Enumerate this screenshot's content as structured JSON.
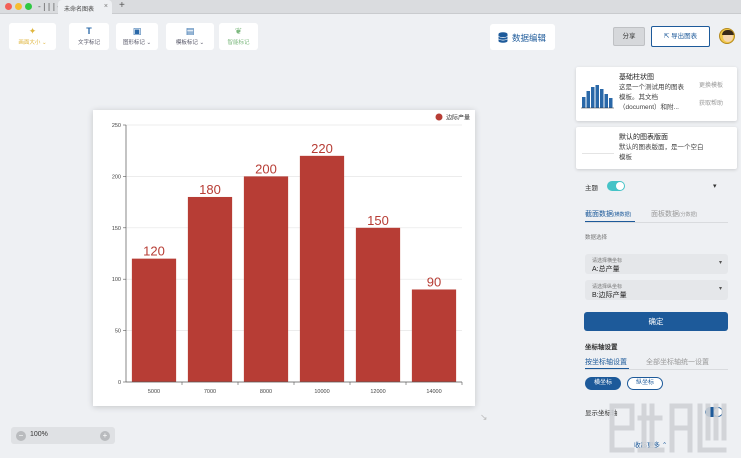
{
  "window": {
    "app_logo": "-|||-",
    "tab_title": "未命名图表",
    "tab_close": "×",
    "tab_add": "+"
  },
  "toolbar": {
    "buttons": [
      {
        "label": "画面大小",
        "icon": "wand-icon",
        "glyph": "✦",
        "chevron": "⌄",
        "color": "#e0b63e"
      },
      {
        "label": "文字标记",
        "icon": "text-icon",
        "glyph": "T"
      },
      {
        "label": "图形标记",
        "icon": "image-icon",
        "glyph": "▣",
        "chevron": "⌄"
      },
      {
        "label": "模板标记",
        "icon": "template-icon",
        "glyph": "▤",
        "chevron": "⌄"
      },
      {
        "label": "智能标记",
        "icon": "leaf-icon",
        "glyph": "❦",
        "color": "#7cb87e"
      }
    ],
    "data_edit": "数据编辑",
    "share": "分享",
    "export": "导出图表"
  },
  "zoom": {
    "value": "100%",
    "minus": "−",
    "plus": "+"
  },
  "chart_data": {
    "type": "bar",
    "categories": [
      "5000",
      "7000",
      "8000",
      "10000",
      "12000",
      "14000"
    ],
    "series": [
      {
        "name": "边际产量",
        "values": [
          120,
          180,
          200,
          220,
          150,
          90
        ]
      }
    ],
    "data_labels": [
      "120",
      "180",
      "200",
      "220",
      "150",
      "90"
    ],
    "ylim": [
      0,
      250
    ],
    "yticks": [
      "0",
      "50",
      "100",
      "150",
      "200",
      "250"
    ],
    "grid": true,
    "legend_position": "top-right",
    "bar_color": "#b73d35"
  },
  "templates": [
    {
      "name": "基础柱状图",
      "desc_lines": [
        "这是一个测试用的图表",
        "模板。其文档",
        "（document）和附..."
      ],
      "actions": [
        "更换模板",
        "获取帮助"
      ]
    },
    {
      "name": "默认的图表版面",
      "desc_lines": [
        "默认的图表版面，是一个空白",
        "模板"
      ]
    }
  ],
  "panel": {
    "theme_label": "主题",
    "theme_chevron": "▾",
    "data_tabs": [
      {
        "label": "截面数据",
        "sub": "(横数据)"
      },
      {
        "label": "面板数据",
        "sub": "(分数据)"
      }
    ],
    "data_select_label": "数据选择",
    "x_select": {
      "caption": "请选择横坐标",
      "value": "A:总产量",
      "arrow": "▾"
    },
    "y_select": {
      "caption": "请选择纵坐标",
      "value": "B:边际产量",
      "arrow": "▾"
    },
    "confirm": "确定",
    "axis_settings_label": "坐标轴设置",
    "axis_tabs": [
      "按坐标轴设置",
      "全部坐标轴统一设置"
    ],
    "axis_pills": [
      "横坐标",
      "纵坐标"
    ],
    "show_axis_label": "显示坐标轴",
    "collapse_more": "收起更多"
  },
  "colors": {
    "accent": "#1d5a9a",
    "toggle_teal": "#45c3c7"
  }
}
